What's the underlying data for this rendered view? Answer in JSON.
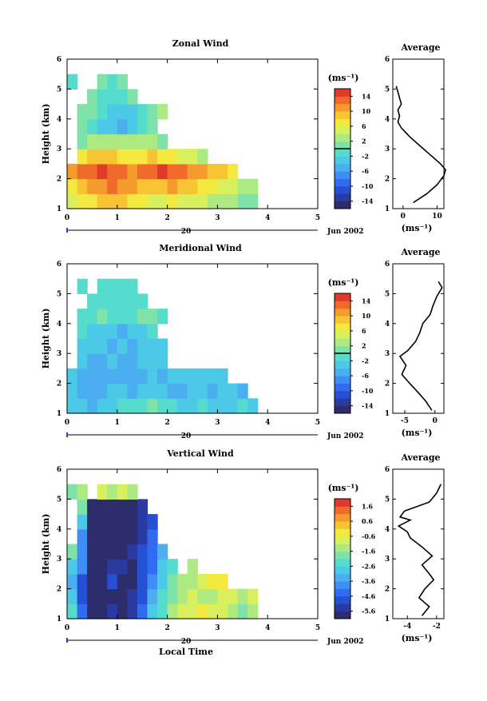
{
  "chart_data": [
    {
      "type": "heatmap",
      "title": "Zonal Wind",
      "xlabel": "",
      "ylabel": "Height (km)",
      "xlim": [
        0,
        5
      ],
      "ylim": [
        1,
        6
      ],
      "x_ticks": [
        "0",
        "1",
        "2",
        "3",
        "4",
        "5"
      ],
      "y_ticks": [
        "1",
        "2",
        "3",
        "4",
        "5",
        "6"
      ],
      "date_axis": {
        "day": "20",
        "month_label": "Jun 2002"
      },
      "colorbar": {
        "unit": "(ms⁻¹)",
        "range": [
          -16,
          16
        ],
        "tick_labels": [
          "14",
          "10",
          "6",
          "2",
          "-2",
          "-6",
          "-10",
          "-14"
        ],
        "zero_line": 0
      },
      "field": {
        "x": [
          0.1,
          0.3,
          0.5,
          0.7,
          0.9,
          1.1,
          1.3,
          1.5,
          1.7,
          1.9,
          2.1,
          2.3,
          2.5,
          2.7,
          2.9,
          3.1,
          3.3,
          3.5,
          3.7
        ],
        "y": [
          1.25,
          1.75,
          2.25,
          2.75,
          3.25,
          3.75,
          4.25,
          4.75,
          5.25
        ],
        "values": [
          [
            4,
            6,
            7,
            8,
            9,
            8,
            7,
            6,
            5,
            5,
            6,
            5,
            4,
            4,
            3,
            3,
            2,
            1,
            0
          ],
          [
            7,
            9,
            10,
            11,
            12,
            11,
            10,
            9,
            8,
            9,
            10,
            9,
            8,
            7,
            6,
            5,
            4,
            3,
            2
          ],
          [
            11,
            12,
            13,
            14,
            13,
            12,
            11,
            12,
            13,
            14,
            13,
            12,
            11,
            10,
            9,
            8,
            7,
            null,
            null
          ],
          [
            null,
            6,
            8,
            9,
            8,
            7,
            6,
            7,
            8,
            7,
            6,
            5,
            4,
            3,
            null,
            null,
            null,
            null,
            null
          ],
          [
            null,
            1,
            2,
            3,
            3,
            2,
            2,
            3,
            2,
            1,
            null,
            null,
            null,
            null,
            null,
            null,
            null,
            null,
            null
          ],
          [
            null,
            0,
            -2,
            -3,
            -4,
            -5,
            -4,
            -2,
            0,
            null,
            null,
            null,
            null,
            null,
            null,
            null,
            null,
            null,
            null
          ],
          [
            null,
            1,
            0,
            -2,
            -3,
            -4,
            -3,
            -1,
            1,
            2,
            null,
            null,
            null,
            null,
            null,
            null,
            null,
            null,
            null
          ],
          [
            null,
            null,
            0,
            -1,
            -2,
            -1,
            0,
            null,
            null,
            null,
            null,
            null,
            null,
            null,
            null,
            null,
            null,
            null,
            null
          ],
          [
            -1,
            null,
            null,
            0,
            -1,
            0,
            null,
            null,
            null,
            null,
            null,
            null,
            null,
            null,
            null,
            null,
            null,
            null,
            null
          ]
        ]
      },
      "profile": {
        "title": "Average",
        "xlabel": "(ms⁻¹)",
        "xlim": [
          -3,
          12
        ],
        "x_ticks": [
          "0",
          "10"
        ],
        "heights": [
          1.2,
          1.5,
          1.8,
          2.1,
          2.3,
          2.5,
          2.8,
          3.1,
          3.4,
          3.7,
          3.9,
          4.1,
          4.3,
          4.5,
          4.7,
          4.9,
          5.1
        ],
        "values": [
          3,
          7,
          10,
          12,
          12.5,
          11,
          8,
          5,
          2,
          -0.5,
          -1.5,
          -1,
          -1.5,
          -0.5,
          -1,
          -1.5,
          -2
        ]
      }
    },
    {
      "type": "heatmap",
      "title": "Meridional Wind",
      "xlabel": "",
      "ylabel": "Height (km)",
      "xlim": [
        0,
        5
      ],
      "ylim": [
        1,
        6
      ],
      "x_ticks": [
        "0",
        "1",
        "2",
        "3",
        "4",
        "5"
      ],
      "y_ticks": [
        "1",
        "2",
        "3",
        "4",
        "5",
        "6"
      ],
      "date_axis": {
        "day": "20",
        "month_label": "Jun 2002"
      },
      "colorbar": {
        "unit": "(ms⁻¹)",
        "range": [
          -16,
          16
        ],
        "tick_labels": [
          "14",
          "10",
          "6",
          "2",
          "-2",
          "-6",
          "-10",
          "-14"
        ],
        "zero_line": 0
      },
      "field": {
        "x": [
          0.1,
          0.3,
          0.5,
          0.7,
          0.9,
          1.1,
          1.3,
          1.5,
          1.7,
          1.9,
          2.1,
          2.3,
          2.5,
          2.7,
          2.9,
          3.1,
          3.3,
          3.5,
          3.7
        ],
        "y": [
          1.25,
          1.75,
          2.25,
          2.75,
          3.25,
          3.75,
          4.25,
          4.75,
          5.25
        ],
        "values": [
          [
            -3,
            -4,
            -5,
            -4,
            -3,
            -2,
            -2,
            -1,
            0,
            -1,
            -2,
            -3,
            -3,
            -2,
            -3,
            -4,
            -3,
            -2,
            -3
          ],
          [
            -4,
            -5,
            -6,
            -5,
            -4,
            -4,
            -5,
            -4,
            -3,
            -4,
            -5,
            -5,
            -4,
            -4,
            -5,
            -4,
            -4,
            -5,
            null
          ],
          [
            -3,
            -5,
            -6,
            -6,
            -5,
            -5,
            -6,
            -5,
            -4,
            -5,
            -4,
            -4,
            -3,
            -3,
            -4,
            -3,
            null,
            null,
            null
          ],
          [
            null,
            -4,
            -5,
            -5,
            -4,
            -5,
            -5,
            -4,
            -3,
            -3,
            null,
            null,
            null,
            null,
            null,
            null,
            null,
            null,
            null
          ],
          [
            null,
            -3,
            -4,
            -4,
            -5,
            -4,
            -5,
            -4,
            -3,
            -3,
            null,
            null,
            null,
            null,
            null,
            null,
            null,
            null,
            null
          ],
          [
            null,
            -2,
            -3,
            -4,
            -4,
            -5,
            -4,
            -3,
            -2,
            null,
            null,
            null,
            null,
            null,
            null,
            null,
            null,
            null,
            null
          ],
          [
            null,
            -1,
            -2,
            0,
            -1,
            -2,
            -1,
            1,
            0,
            -1,
            null,
            null,
            null,
            null,
            null,
            null,
            null,
            null,
            null
          ],
          [
            null,
            null,
            -1,
            -2,
            -1,
            -1,
            -2,
            -1,
            null,
            null,
            null,
            null,
            null,
            null,
            null,
            null,
            null,
            null,
            null
          ],
          [
            null,
            -2,
            null,
            -1,
            -2,
            -1,
            -2,
            null,
            null,
            null,
            null,
            null,
            null,
            null,
            null,
            null,
            null,
            null,
            null
          ]
        ]
      },
      "profile": {
        "title": "Average",
        "xlabel": "(ms⁻¹)",
        "xlim": [
          -7,
          1.5
        ],
        "x_ticks": [
          "-5",
          "0"
        ],
        "heights": [
          1.1,
          1.4,
          1.7,
          2.0,
          2.3,
          2.6,
          2.9,
          3.1,
          3.4,
          3.7,
          4.0,
          4.3,
          4.6,
          4.9,
          5.2,
          5.4
        ],
        "values": [
          -0.5,
          -1.5,
          -2.8,
          -4.2,
          -5.5,
          -4.8,
          -5.8,
          -4.5,
          -3.2,
          -2.5,
          -2,
          -0.8,
          -0.3,
          0.3,
          1.2,
          0.6
        ]
      }
    },
    {
      "type": "heatmap",
      "title": "Vertical Wind",
      "xlabel": "Local Time",
      "ylabel": "Height (km)",
      "xlim": [
        0,
        5
      ],
      "ylim": [
        1,
        6
      ],
      "x_ticks": [
        "0",
        "1",
        "2",
        "3",
        "4",
        "5"
      ],
      "y_ticks": [
        "1",
        "2",
        "3",
        "4",
        "5",
        "6"
      ],
      "date_axis": {
        "day": "20",
        "month_label": "Jun 2002"
      },
      "colorbar": {
        "unit": "(ms⁻¹)",
        "range": [
          -6,
          2
        ],
        "tick_labels": [
          "1.6",
          "0.6",
          "-0.6",
          "-1.6",
          "-2.6",
          "-3.6",
          "-4.6",
          "-5.6"
        ]
      },
      "field": {
        "x": [
          0.1,
          0.3,
          0.5,
          0.7,
          0.9,
          1.1,
          1.3,
          1.5,
          1.7,
          1.9,
          2.1,
          2.3,
          2.5,
          2.7,
          2.9,
          3.1,
          3.3,
          3.5,
          3.7
        ],
        "y": [
          1.25,
          1.75,
          2.25,
          2.75,
          3.25,
          3.75,
          4.25,
          4.75,
          5.25
        ],
        "values": [
          [
            -2.5,
            -4.5,
            -6,
            -6,
            -5.5,
            -6,
            -5.5,
            -4.5,
            -3,
            -2.5,
            -1.5,
            -1,
            -0.8,
            -0.5,
            -0.8,
            -1,
            -1.5,
            -1.8,
            -1.2
          ],
          [
            -3,
            -5,
            -6,
            -6,
            -6,
            -6,
            -5.5,
            -5,
            -3.5,
            -2.5,
            -2,
            -1.5,
            -1,
            -1.2,
            -1.5,
            -1,
            -0.8,
            -1.5,
            -1
          ],
          [
            -3.5,
            -5,
            -6,
            -6,
            -5,
            -6,
            -6,
            -5,
            -4,
            -3,
            -2,
            -1.5,
            -1.2,
            -0.8,
            -0.5,
            -0.4,
            null,
            null,
            null
          ],
          [
            -3,
            -4,
            -6,
            -6,
            -5.5,
            -5.5,
            -6,
            -5,
            -4.5,
            -3,
            -2.5,
            null,
            -1.5,
            null,
            null,
            null,
            null,
            null,
            null
          ],
          [
            -2,
            -4,
            -6,
            -6,
            -6,
            -6,
            -5.5,
            -5,
            -4.5,
            -3.5,
            null,
            null,
            null,
            null,
            null,
            null,
            null,
            null,
            null
          ],
          [
            null,
            -4,
            -6,
            -6,
            -6,
            -6,
            -6,
            -5.5,
            -4.5,
            null,
            null,
            null,
            null,
            null,
            null,
            null,
            null,
            null,
            null
          ],
          [
            null,
            -3,
            -6,
            -6,
            -6,
            -6,
            -6,
            -5.5,
            -5,
            null,
            null,
            null,
            null,
            null,
            null,
            null,
            null,
            null,
            null
          ],
          [
            null,
            -2,
            -6,
            -6,
            -6,
            -6,
            -6,
            -5.5,
            null,
            null,
            null,
            null,
            null,
            null,
            null,
            null,
            null,
            null,
            null
          ],
          [
            -2,
            -1.5,
            null,
            -1,
            -1.5,
            -1,
            -1.5,
            null,
            null,
            null,
            null,
            null,
            null,
            null,
            null,
            null,
            null,
            null,
            null
          ]
        ]
      },
      "profile": {
        "title": "Average",
        "xlabel": "(ms⁻¹)",
        "xlim": [
          -5,
          -1.5
        ],
        "x_ticks": [
          "-4",
          "-2"
        ],
        "heights": [
          1.1,
          1.4,
          1.7,
          2.0,
          2.3,
          2.5,
          2.8,
          3.1,
          3.4,
          3.7,
          3.9,
          4.1,
          4.3,
          4.4,
          4.6,
          4.9,
          5.2,
          5.5
        ],
        "values": [
          -3,
          -2.5,
          -3.2,
          -2.8,
          -2.2,
          -2.5,
          -3,
          -2.3,
          -3,
          -3.8,
          -4,
          -4.6,
          -3.8,
          -4.5,
          -4.2,
          -2.5,
          -2,
          -1.7
        ]
      }
    }
  ]
}
